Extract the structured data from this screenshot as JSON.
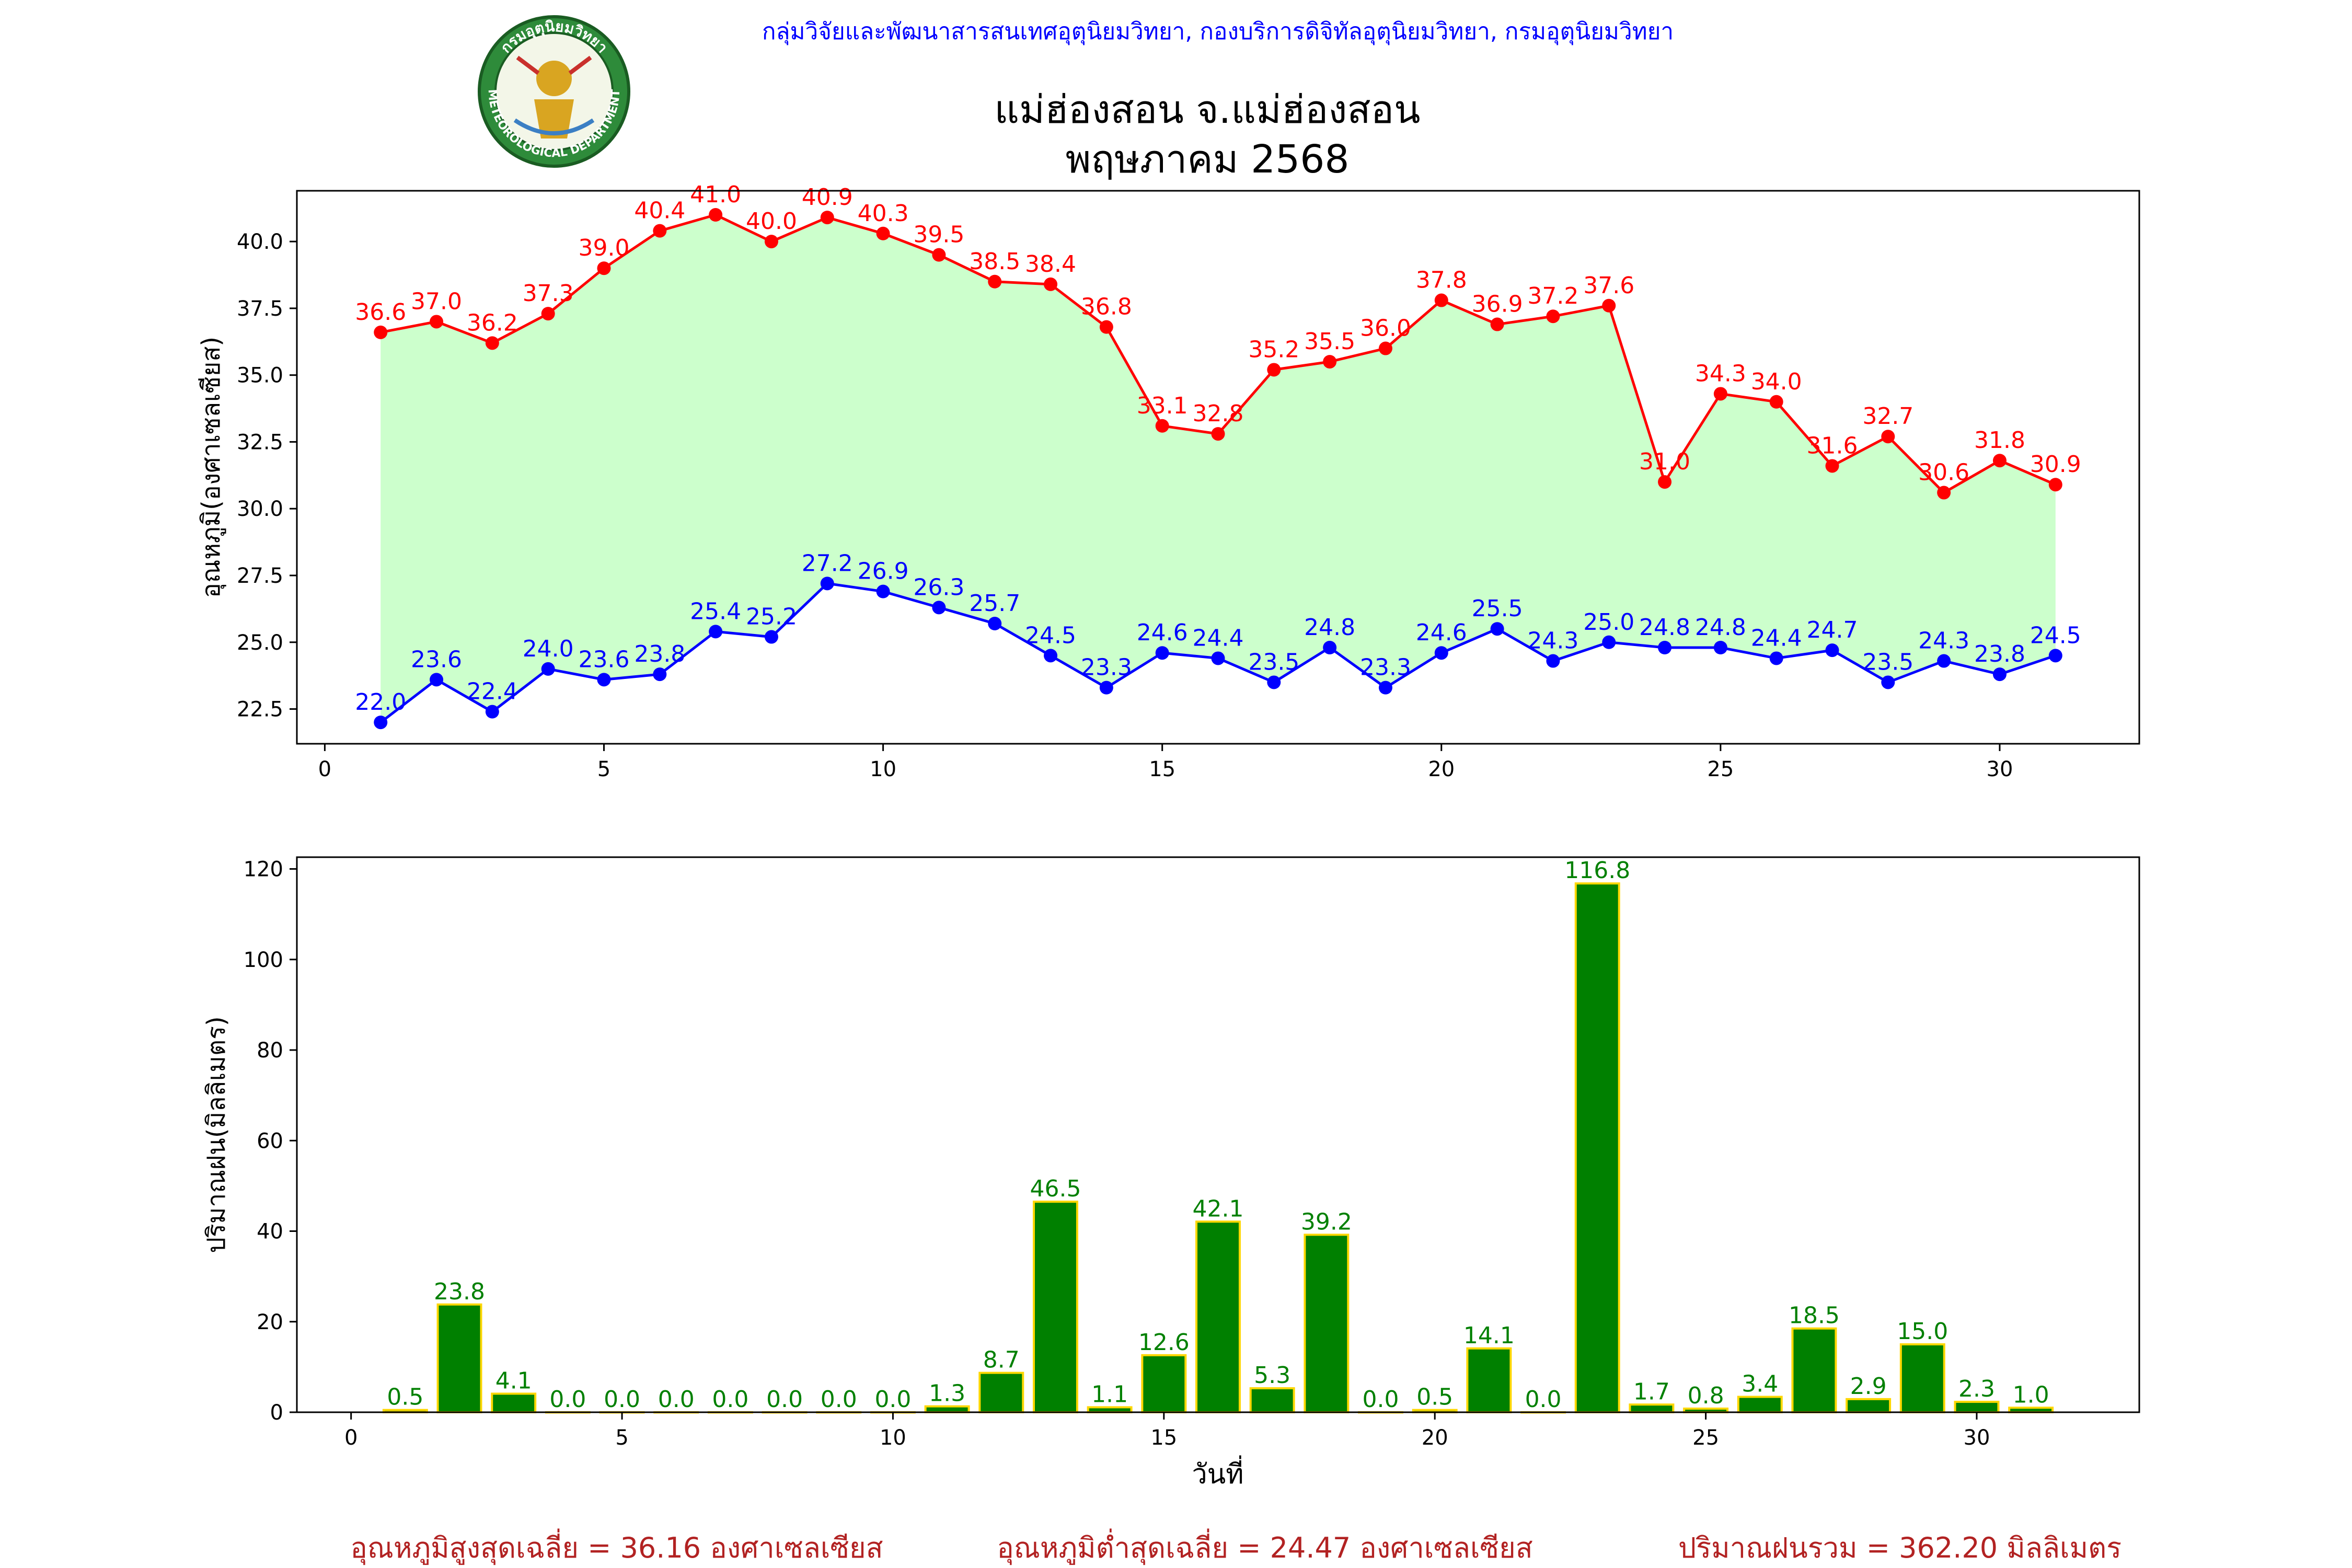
{
  "header": {
    "agency_line": "กลุ่มวิจัยและพัฒนาสารสนเทศอุตุนิยมวิทยา, กองบริการดิจิทัลอุตุนิยมวิทยา, กรมอุตุนิยมวิทยา",
    "station": "แม่ฮ่องสอน จ.แม่ฮ่องสอน",
    "period": "พฤษภาคม 2568",
    "logo_text_top": "กรมอุตุนิยมวิทยา",
    "logo_text_bottom": "METEOROLOGICAL DEPARTMENT"
  },
  "colors": {
    "agency_line": "#0000ff",
    "tmax": "#ff0000",
    "tmin": "#0000ff",
    "fill": "#ccffcc",
    "rain_bar": "#008000",
    "rain_edge": "#ffd700",
    "rain_label": "#008000",
    "summary": "#b22222"
  },
  "chart_data": [
    {
      "type": "line",
      "ylabel": "อุณหภูมิ(องศาเซลเซียส)",
      "xlim": [
        -0.5,
        32.5
      ],
      "ylim": [
        21.2,
        41.9
      ],
      "xticks": [
        0,
        5,
        10,
        15,
        20,
        25,
        30
      ],
      "yticks": [
        22.5,
        25.0,
        27.5,
        30.0,
        32.5,
        35.0,
        37.5,
        40.0
      ],
      "ytick_labels": [
        "22.5",
        "25.0",
        "27.5",
        "30.0",
        "32.5",
        "35.0",
        "37.5",
        "40.0"
      ],
      "x": [
        1,
        2,
        3,
        4,
        5,
        6,
        7,
        8,
        9,
        10,
        11,
        12,
        13,
        14,
        15,
        16,
        17,
        18,
        19,
        20,
        21,
        22,
        23,
        24,
        25,
        26,
        27,
        28,
        29,
        30,
        31
      ],
      "series": [
        {
          "key": "tmax",
          "values": [
            36.6,
            37.0,
            36.2,
            37.3,
            39.0,
            40.4,
            41.0,
            40.0,
            40.9,
            40.3,
            39.5,
            38.5,
            38.4,
            36.8,
            33.1,
            32.8,
            35.2,
            35.5,
            36.0,
            37.8,
            36.9,
            37.2,
            37.6,
            31.0,
            34.3,
            34.0,
            31.6,
            32.7,
            30.6,
            31.8,
            30.9
          ],
          "labels": [
            "36.6",
            "37.0",
            "36.2",
            "37.3",
            "39.0",
            "40.4",
            "41.0",
            "40.0",
            "40.9",
            "40.3",
            "39.5",
            "38.5",
            "38.4",
            "36.8",
            "33.1",
            "32.8",
            "35.2",
            "35.5",
            "36.0",
            "37.8",
            "36.9",
            "37.2",
            "37.6",
            "31.0",
            "34.3",
            "34.0",
            "31.6",
            "32.7",
            "30.6",
            "31.8",
            "30.9"
          ]
        },
        {
          "key": "tmin",
          "values": [
            22.0,
            23.6,
            22.4,
            24.0,
            23.6,
            23.8,
            25.4,
            25.2,
            27.2,
            26.9,
            26.3,
            25.7,
            24.5,
            23.3,
            24.6,
            24.4,
            23.5,
            24.8,
            23.3,
            24.6,
            25.5,
            24.3,
            25.0,
            24.8,
            24.8,
            24.4,
            24.7,
            23.5,
            24.3,
            23.8,
            24.5
          ],
          "labels": [
            "22.0",
            "23.6",
            "22.4",
            "24.0",
            "23.6",
            "23.8",
            "25.4",
            "25.2",
            "27.2",
            "26.9",
            "26.3",
            "25.7",
            "24.5",
            "23.3",
            "24.6",
            "24.4",
            "23.5",
            "24.8",
            "23.3",
            "24.6",
            "25.5",
            "24.3",
            "25.0",
            "24.8",
            "24.8",
            "24.4",
            "24.7",
            "23.5",
            "24.3",
            "23.8",
            "24.5"
          ]
        }
      ]
    },
    {
      "type": "bar",
      "ylabel": "ปริมาณฝน(มิลลิเมตร)",
      "xlabel": "วันที่",
      "xlim": [
        -1.0,
        33.0
      ],
      "ylim": [
        0,
        122.6
      ],
      "xticks": [
        0,
        5,
        10,
        15,
        20,
        25,
        30
      ],
      "yticks": [
        0,
        20,
        40,
        60,
        80,
        100,
        120
      ],
      "x": [
        1,
        2,
        3,
        4,
        5,
        6,
        7,
        8,
        9,
        10,
        11,
        12,
        13,
        14,
        15,
        16,
        17,
        18,
        19,
        20,
        21,
        22,
        23,
        24,
        25,
        26,
        27,
        28,
        29,
        30,
        31
      ],
      "values": [
        0.5,
        23.8,
        4.1,
        0.0,
        0.0,
        0.0,
        0.0,
        0.0,
        0.0,
        0.0,
        1.3,
        8.7,
        46.5,
        1.1,
        12.6,
        42.1,
        5.3,
        39.2,
        0.0,
        0.5,
        14.1,
        0.0,
        116.8,
        1.7,
        0.8,
        3.4,
        18.5,
        2.9,
        15.0,
        2.3,
        1.0
      ],
      "labels": [
        "0.5",
        "23.8",
        "4.1",
        "0.0",
        "0.0",
        "0.0",
        "0.0",
        "0.0",
        "0.0",
        "0.0",
        "1.3",
        "8.7",
        "46.5",
        "1.1",
        "12.6",
        "42.1",
        "5.3",
        "39.2",
        "0.0",
        "0.5",
        "14.1",
        "0.0",
        "116.8",
        "1.7",
        "0.8",
        "3.4",
        "18.5",
        "2.9",
        "15.0",
        "2.3",
        "1.0"
      ]
    }
  ],
  "summary": {
    "avg_max": "อุณหภูมิสูงสุดเฉลี่ย = 36.16 องศาเซลเซียส",
    "avg_min": "อุณหภูมิต่ำสุดเฉลี่ย = 24.47 องศาเซลเซียส",
    "total_rain": "ปริมาณฝนรวม = 362.20 มิลลิเมตร"
  }
}
